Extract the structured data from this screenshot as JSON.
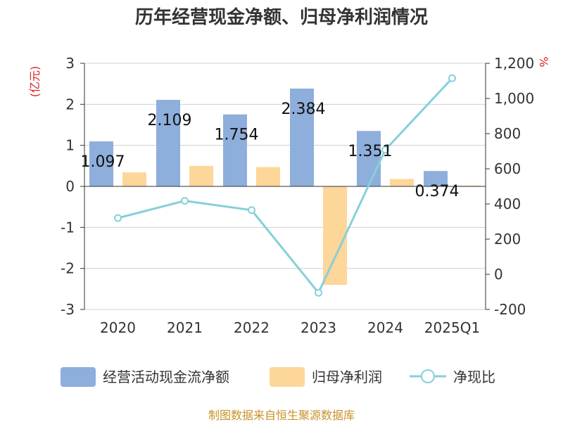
{
  "chart_data": {
    "type": "bar",
    "title": "历年经营现金净额、归母净利润情况",
    "categories": [
      "2020",
      "2021",
      "2022",
      "2023",
      "2024",
      "2025Q1"
    ],
    "series": [
      {
        "name": "经营活动现金流净额",
        "kind": "bar",
        "axis": "left",
        "color": "#8eaedc",
        "values": [
          1.097,
          2.109,
          1.754,
          2.384,
          1.351,
          0.374
        ]
      },
      {
        "name": "归母净利润",
        "kind": "bar",
        "axis": "left",
        "color": "#fdd699",
        "values": [
          0.34,
          0.5,
          0.47,
          -2.4,
          0.18,
          0.02
        ]
      },
      {
        "name": "净现比",
        "kind": "line",
        "axis": "right",
        "color": "#86d0d8",
        "values": [
          320,
          418,
          365,
          -105,
          708,
          1115
        ]
      }
    ],
    "data_labels": [
      "1.097",
      "2.109",
      "1.754",
      "2.384",
      "1.351",
      "0.374"
    ],
    "left_axis": {
      "unit": "(亿元)",
      "ylim": [
        -3,
        3
      ],
      "ticks": [
        3,
        2,
        1,
        0,
        -1,
        -2,
        -3
      ],
      "tick_labels": [
        "3",
        "2",
        "1",
        "0",
        "-1",
        "-2",
        "-3"
      ]
    },
    "right_axis": {
      "unit": "%",
      "ylim": [
        -200,
        1200
      ],
      "ticks": [
        1200,
        1000,
        800,
        600,
        400,
        200,
        0,
        -200
      ],
      "tick_labels": [
        "1,200",
        "1,000",
        "800",
        "600",
        "400",
        "200",
        "0",
        "-200"
      ]
    },
    "grid": true,
    "legend_position": "bottom"
  },
  "source": "制图数据来自恒生聚源数据库"
}
